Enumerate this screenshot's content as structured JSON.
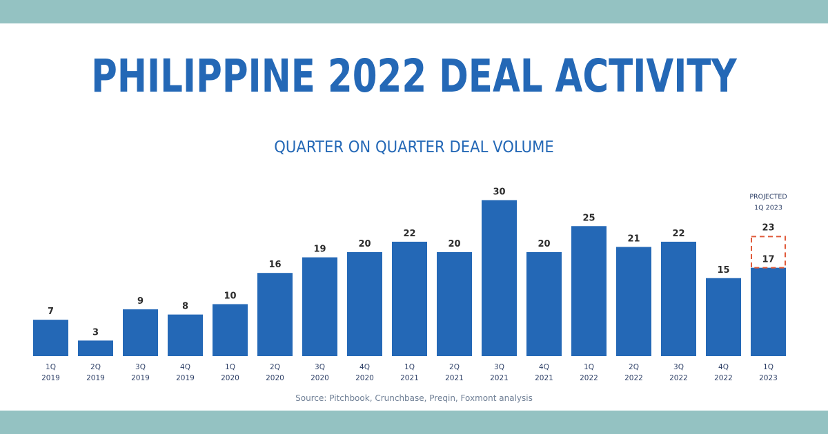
{
  "title": "PHILIPPINE 2022 DEAL ACTIVITY",
  "source": "Source: Pitchbook, Crunchbase, Preqin, Foxmont analysis",
  "colors": {
    "bar": "#2468b6",
    "band": "#94c2c2",
    "projection_outline": "#e05a3a"
  },
  "chart_data": {
    "type": "bar",
    "title": "QUARTER ON QUARTER DEAL VOLUME",
    "categories": [
      [
        "1Q",
        "2019"
      ],
      [
        "2Q",
        "2019"
      ],
      [
        "3Q",
        "2019"
      ],
      [
        "4Q",
        "2019"
      ],
      [
        "1Q",
        "2020"
      ],
      [
        "2Q",
        "2020"
      ],
      [
        "3Q",
        "2020"
      ],
      [
        "4Q",
        "2020"
      ],
      [
        "1Q",
        "2021"
      ],
      [
        "2Q",
        "2021"
      ],
      [
        "3Q",
        "2021"
      ],
      [
        "4Q",
        "2021"
      ],
      [
        "1Q",
        "2022"
      ],
      [
        "2Q",
        "2022"
      ],
      [
        "3Q",
        "2022"
      ],
      [
        "4Q",
        "2022"
      ],
      [
        "1Q",
        "2023"
      ]
    ],
    "values": [
      7,
      3,
      9,
      8,
      10,
      16,
      19,
      20,
      22,
      20,
      30,
      20,
      25,
      21,
      22,
      15,
      17
    ],
    "projection": {
      "category_index": 16,
      "value": 23,
      "label_lines": [
        "PROJECTED",
        "1Q 2023"
      ]
    },
    "xlabel": "",
    "ylabel": "",
    "ylim": [
      0,
      30
    ],
    "grid": false,
    "legend": "none"
  }
}
